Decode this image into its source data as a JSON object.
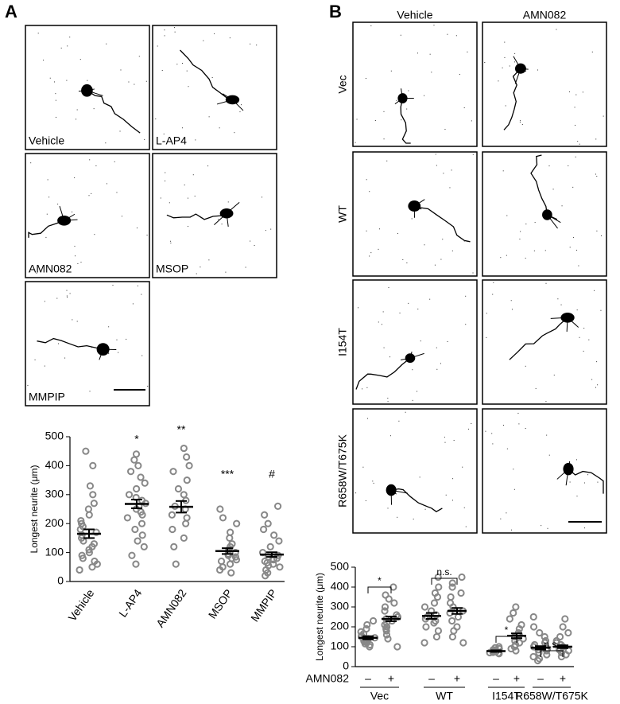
{
  "figure": {
    "panel_a": {
      "label": "A",
      "images": [
        "Vehicle",
        "L-AP4",
        "AMN082",
        "MSOP",
        "MMPIP"
      ]
    },
    "panel_b": {
      "label": "B",
      "columns": [
        "Vehicle",
        "AMN082"
      ],
      "rows": [
        "Vec",
        "WT",
        "I154T",
        "R658W/T675K"
      ]
    }
  },
  "chart_data": [
    {
      "type": "dotplot",
      "ylabel": "Longest neurite (μm)",
      "categories": [
        "Vehicle",
        "L-AP4",
        "AMN082",
        "MSOP",
        "MMPIP"
      ],
      "annotations": [
        null,
        "*",
        "**",
        "***",
        "#"
      ],
      "values": [
        165,
        268,
        258,
        105,
        93
      ],
      "errors": [
        15,
        15,
        20,
        10,
        8
      ],
      "points": [
        [
          450,
          400,
          330,
          300,
          270,
          250,
          230,
          210,
          200,
          190,
          180,
          170,
          160,
          150,
          140,
          130,
          120,
          110,
          100,
          90,
          80,
          70,
          60,
          50,
          40
        ],
        [
          440,
          420,
          400,
          380,
          360,
          340,
          320,
          300,
          290,
          280,
          270,
          260,
          250,
          240,
          230,
          220,
          200,
          180,
          160,
          140,
          120,
          90,
          60
        ],
        [
          460,
          430,
          400,
          380,
          350,
          320,
          300,
          280,
          260,
          250,
          230,
          220,
          200,
          180,
          150,
          120,
          60
        ],
        [
          250,
          220,
          200,
          170,
          150,
          130,
          120,
          110,
          100,
          95,
          90,
          85,
          80,
          75,
          70,
          60,
          50,
          40,
          30
        ],
        [
          260,
          230,
          200,
          180,
          160,
          140,
          120,
          100,
          90,
          85,
          80,
          75,
          70,
          65,
          60,
          55,
          50,
          40,
          30,
          20
        ]
      ],
      "color": "#888888",
      "ylim": [
        0,
        500
      ],
      "yticks": [
        0,
        100,
        200,
        300,
        400,
        500
      ]
    },
    {
      "type": "dotplot",
      "ylabel": "Longest neurite (μm)",
      "row_label": "AMN082",
      "categories": [
        "–",
        "+",
        "–",
        "+",
        "–",
        "+",
        "–",
        "+"
      ],
      "groups": [
        "Vec",
        "WT",
        "I154T",
        "R658W/T675K"
      ],
      "comparisons": [
        "*",
        "n.s.",
        "*",
        "n.s."
      ],
      "values": [
        145,
        240,
        255,
        280,
        78,
        155,
        95,
        100
      ],
      "errors": [
        8,
        12,
        15,
        15,
        4,
        12,
        8,
        7
      ],
      "points": [
        [
          230,
          210,
          190,
          175,
          165,
          155,
          150,
          145,
          140,
          135,
          130,
          125,
          120,
          115,
          110,
          100
        ],
        [
          400,
          360,
          340,
          320,
          300,
          280,
          260,
          250,
          240,
          230,
          220,
          210,
          200,
          190,
          180,
          160,
          140,
          100
        ],
        [
          450,
          400,
          370,
          350,
          320,
          300,
          280,
          260,
          250,
          240,
          230,
          220,
          200,
          180,
          150,
          120
        ],
        [
          450,
          420,
          400,
          370,
          350,
          320,
          300,
          280,
          270,
          250,
          230,
          200,
          180,
          150,
          120
        ],
        [
          100,
          95,
          90,
          85,
          80,
          78,
          75,
          72,
          70,
          68,
          65
        ],
        [
          300,
          270,
          240,
          210,
          190,
          170,
          160,
          150,
          140,
          130,
          120,
          110,
          100,
          90,
          80
        ],
        [
          250,
          200,
          170,
          150,
          130,
          120,
          110,
          100,
          90,
          85,
          80,
          70,
          60,
          50,
          40,
          30
        ],
        [
          240,
          200,
          170,
          150,
          130,
          120,
          110,
          100,
          95,
          90,
          85,
          80,
          70,
          60,
          50
        ]
      ],
      "color": "#888888",
      "ylim": [
        0,
        500
      ],
      "yticks": [
        0,
        100,
        200,
        300,
        400,
        500
      ]
    }
  ]
}
